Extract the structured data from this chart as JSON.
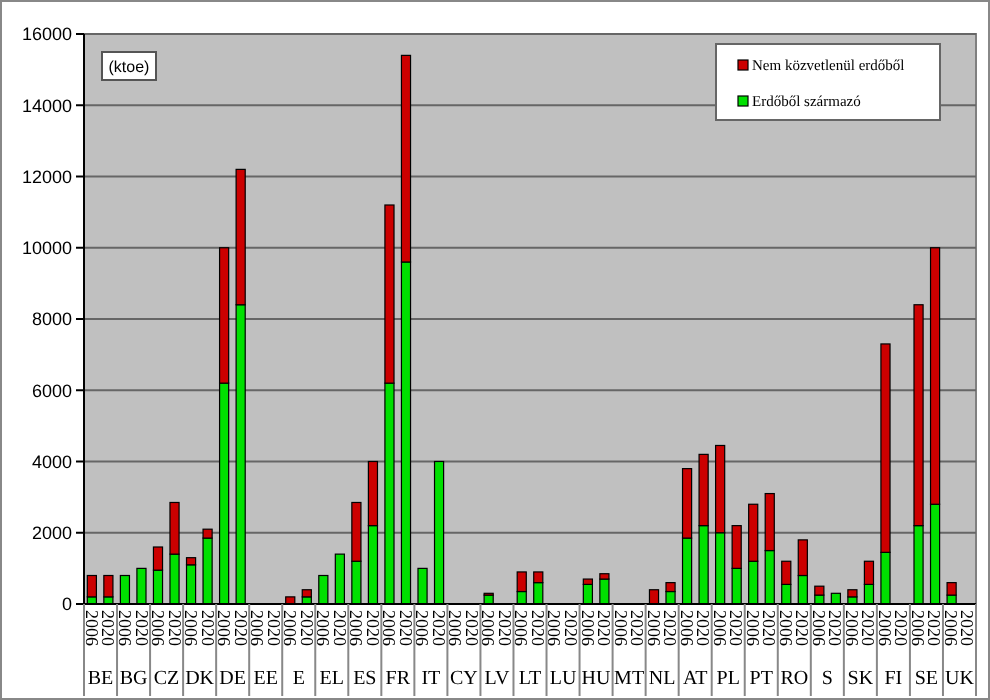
{
  "chart_data": {
    "type": "bar",
    "stacked": true,
    "ylabel": "(ktoe)",
    "ylim": [
      0,
      16000
    ],
    "yticks": [
      0,
      2000,
      4000,
      6000,
      8000,
      10000,
      12000,
      14000,
      16000
    ],
    "grid": "y",
    "legend": "top right",
    "categories": [
      "2006",
      "2020",
      "2006",
      "2020",
      "2006",
      "2020",
      "2006",
      "2020",
      "2006",
      "2020",
      "2006",
      "2020",
      "2006",
      "2020",
      "2006",
      "2020",
      "2006",
      "2020",
      "2006",
      "2020",
      "2006",
      "2020",
      "2006",
      "2020",
      "2006",
      "2020",
      "2006",
      "2020",
      "2006",
      "2020",
      "2006",
      "2020",
      "2006",
      "2020",
      "2006",
      "2020",
      "2006",
      "2020",
      "2006",
      "2020",
      "2006",
      "2020",
      "2006",
      "2020",
      "2006",
      "2020",
      "2006",
      "2020",
      "2006",
      "2020",
      "2006",
      "2020",
      "2006",
      "2020"
    ],
    "annotations": [
      "BE",
      "BG",
      "CZ",
      "DK",
      "DE",
      "EE",
      "E",
      "EL",
      "ES",
      "FR",
      "IT",
      "CY",
      "LV",
      "LT",
      "LU",
      "HU",
      "MT",
      "NL",
      "AT",
      "PL",
      "PT",
      "RO",
      "S",
      "SK",
      "FI",
      "SE",
      "UK"
    ],
    "series": [
      {
        "name": "Erdőből származó",
        "color": "#00e000",
        "values": [
          200,
          200,
          800,
          1000,
          950,
          1400,
          1100,
          1850,
          6200,
          8400,
          null,
          null,
          null,
          200,
          800,
          1400,
          1200,
          2200,
          6200,
          9600,
          1000,
          4000,
          null,
          null,
          250,
          null,
          350,
          600,
          null,
          null,
          550,
          700,
          null,
          null,
          0,
          350,
          1850,
          2200,
          2000,
          1000,
          1200,
          1500,
          550,
          800,
          250,
          300,
          200,
          550,
          1450,
          null,
          2200,
          2800,
          250,
          null
        ]
      },
      {
        "name": "Nem közvetlenül erdőből",
        "color": "#cc0000",
        "values": [
          600,
          600,
          0,
          0,
          650,
          1450,
          200,
          250,
          3800,
          3800,
          null,
          null,
          200,
          200,
          0,
          0,
          1650,
          1800,
          5000,
          5800,
          0,
          0,
          null,
          null,
          50,
          null,
          550,
          300,
          null,
          null,
          150,
          150,
          null,
          null,
          400,
          250,
          1950,
          2000,
          2450,
          1200,
          1600,
          1600,
          650,
          1000,
          250,
          0,
          200,
          650,
          5850,
          null,
          6200,
          7200,
          350,
          null
        ]
      }
    ]
  }
}
